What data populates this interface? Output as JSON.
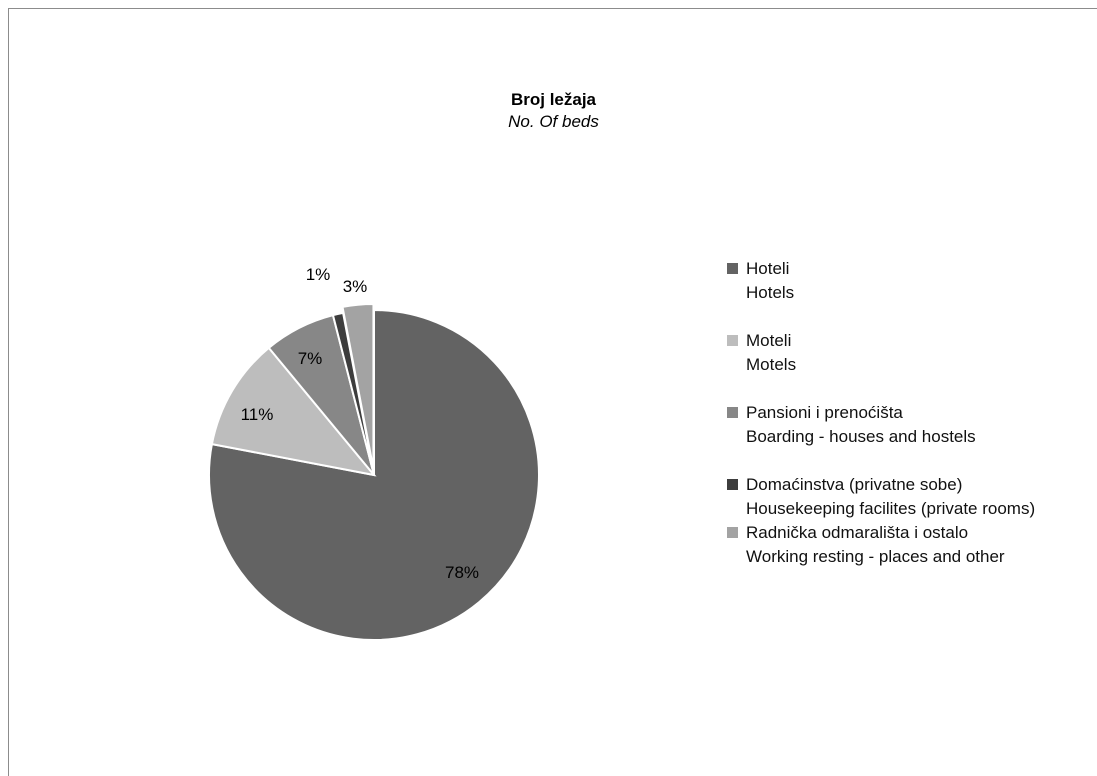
{
  "chart_data": {
    "type": "pie",
    "title": "Broj ležaja",
    "subtitle": "No. Of beds",
    "slices": [
      {
        "label": "Hoteli",
        "label_en": "Hotels",
        "value": 78,
        "display": "78%",
        "color": "#636363"
      },
      {
        "label": "Moteli",
        "label_en": "Motels",
        "value": 11,
        "display": "11%",
        "color": "#bdbdbd"
      },
      {
        "label": "Pansioni  i  prenoćišta",
        "label_en": "Boarding - houses and hostels",
        "value": 7,
        "display": "7%",
        "color": "#878787"
      },
      {
        "label": "Domaćinstva (privatne sobe)",
        "label_en": "Housekeeping facilites (private rooms)",
        "value": 1,
        "display": "1%",
        "color": "#3d3d3d"
      },
      {
        "label": "Radnička odmarališta i ostalo",
        "label_en": "Working resting - places and other",
        "value": 3,
        "display": "3%",
        "color": "#a3a3a3"
      }
    ],
    "legend_position": "right"
  }
}
